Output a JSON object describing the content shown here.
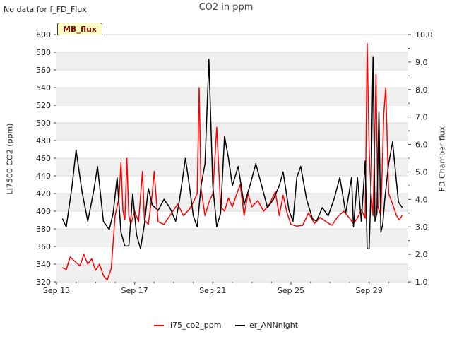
{
  "header": {
    "no_data_text": "No data for f_FD_Flux",
    "badge_text": "MB_flux"
  },
  "chart_data": {
    "type": "line",
    "title": "CO2 in ppm",
    "xlabel": "",
    "ylabel": "LI7500 CO2 (ppm)",
    "y2label": "FD Chamber flux",
    "x_tick_labels": [
      "Sep 13",
      "Sep 17",
      "Sep 21",
      "Sep 25",
      "Sep 29"
    ],
    "x_ticks_day": [
      13,
      17,
      21,
      25,
      29
    ],
    "xlim_day": [
      13,
      31
    ],
    "ylim": [
      320,
      600
    ],
    "y_ticks": [
      320,
      340,
      360,
      380,
      400,
      420,
      440,
      460,
      480,
      500,
      520,
      540,
      560,
      580,
      600
    ],
    "y2lim": [
      1.0,
      10.0
    ],
    "y2_ticks": [
      "1.0",
      "2.0",
      "3.0",
      "4.0",
      "5.0",
      "6.0",
      "7.0",
      "8.0",
      "9.0",
      "10.0"
    ],
    "grid": "horizontal bands",
    "legend_position": "bottom",
    "series": [
      {
        "name": "li75_co2_ppm",
        "color": "#ff0000",
        "axis": "left",
        "points": [
          [
            13.3,
            336
          ],
          [
            13.5,
            334
          ],
          [
            13.7,
            348
          ],
          [
            14.0,
            342
          ],
          [
            14.2,
            338
          ],
          [
            14.4,
            351
          ],
          [
            14.6,
            340
          ],
          [
            14.8,
            346
          ],
          [
            15.0,
            333
          ],
          [
            15.2,
            340
          ],
          [
            15.4,
            327
          ],
          [
            15.6,
            322
          ],
          [
            15.8,
            335
          ],
          [
            16.0,
            395
          ],
          [
            16.2,
            415
          ],
          [
            16.3,
            455
          ],
          [
            16.4,
            400
          ],
          [
            16.5,
            390
          ],
          [
            16.6,
            460
          ],
          [
            16.7,
            395
          ],
          [
            16.8,
            385
          ],
          [
            17.0,
            400
          ],
          [
            17.2,
            388
          ],
          [
            17.4,
            445
          ],
          [
            17.5,
            390
          ],
          [
            17.7,
            385
          ],
          [
            17.9,
            420
          ],
          [
            18.0,
            445
          ],
          [
            18.2,
            388
          ],
          [
            18.5,
            385
          ],
          [
            18.8,
            395
          ],
          [
            19.2,
            408
          ],
          [
            19.5,
            395
          ],
          [
            19.8,
            402
          ],
          [
            20.0,
            410
          ],
          [
            20.2,
            420
          ],
          [
            20.3,
            540
          ],
          [
            20.4,
            425
          ],
          [
            20.6,
            395
          ],
          [
            20.8,
            410
          ],
          [
            21.0,
            420
          ],
          [
            21.2,
            495
          ],
          [
            21.4,
            405
          ],
          [
            21.6,
            400
          ],
          [
            21.8,
            415
          ],
          [
            22.0,
            405
          ],
          [
            22.2,
            418
          ],
          [
            22.4,
            430
          ],
          [
            22.6,
            395
          ],
          [
            22.8,
            420
          ],
          [
            23.0,
            405
          ],
          [
            23.3,
            412
          ],
          [
            23.6,
            400
          ],
          [
            23.9,
            408
          ],
          [
            24.2,
            422
          ],
          [
            24.4,
            395
          ],
          [
            24.6,
            418
          ],
          [
            24.8,
            398
          ],
          [
            25.0,
            385
          ],
          [
            25.3,
            383
          ],
          [
            25.6,
            384
          ],
          [
            25.9,
            398
          ],
          [
            26.2,
            386
          ],
          [
            26.5,
            393
          ],
          [
            26.8,
            388
          ],
          [
            27.1,
            384
          ],
          [
            27.4,
            394
          ],
          [
            27.7,
            400
          ],
          [
            28.0,
            392
          ],
          [
            28.2,
            386
          ],
          [
            28.4,
            392
          ],
          [
            28.6,
            402
          ],
          [
            28.8,
            392
          ],
          [
            28.9,
            590
          ],
          [
            29.0,
            470
          ],
          [
            29.1,
            420
          ],
          [
            29.2,
            395
          ],
          [
            29.35,
            555
          ],
          [
            29.45,
            405
          ],
          [
            29.6,
            395
          ],
          [
            29.75,
            510
          ],
          [
            29.85,
            540
          ],
          [
            30.0,
            420
          ],
          [
            30.2,
            408
          ],
          [
            30.4,
            395
          ],
          [
            30.55,
            390
          ],
          [
            30.7,
            396
          ]
        ]
      },
      {
        "name": "er_ANNnight",
        "color": "#000000",
        "axis": "right",
        "points": [
          [
            13.3,
            3.3
          ],
          [
            13.5,
            3.0
          ],
          [
            13.8,
            4.5
          ],
          [
            14.0,
            5.8
          ],
          [
            14.3,
            4.3
          ],
          [
            14.6,
            3.2
          ],
          [
            14.9,
            4.3
          ],
          [
            15.1,
            5.2
          ],
          [
            15.4,
            3.2
          ],
          [
            15.7,
            2.9
          ],
          [
            15.9,
            3.5
          ],
          [
            16.1,
            4.8
          ],
          [
            16.3,
            2.8
          ],
          [
            16.5,
            2.3
          ],
          [
            16.7,
            2.3
          ],
          [
            16.9,
            4.2
          ],
          [
            17.1,
            2.7
          ],
          [
            17.3,
            2.2
          ],
          [
            17.5,
            3.1
          ],
          [
            17.7,
            4.4
          ],
          [
            17.9,
            3.8
          ],
          [
            18.2,
            3.6
          ],
          [
            18.5,
            4.0
          ],
          [
            18.8,
            3.7
          ],
          [
            19.1,
            3.2
          ],
          [
            19.3,
            4.0
          ],
          [
            19.6,
            5.5
          ],
          [
            19.8,
            4.5
          ],
          [
            20.0,
            3.4
          ],
          [
            20.2,
            3.0
          ],
          [
            20.4,
            4.5
          ],
          [
            20.6,
            5.3
          ],
          [
            20.8,
            9.1
          ],
          [
            21.0,
            4.5
          ],
          [
            21.2,
            3.0
          ],
          [
            21.4,
            3.5
          ],
          [
            21.6,
            6.3
          ],
          [
            21.8,
            5.5
          ],
          [
            22.0,
            4.5
          ],
          [
            22.3,
            5.2
          ],
          [
            22.6,
            3.8
          ],
          [
            22.9,
            4.5
          ],
          [
            23.2,
            5.3
          ],
          [
            23.5,
            4.5
          ],
          [
            23.8,
            3.7
          ],
          [
            24.1,
            4.0
          ],
          [
            24.4,
            4.5
          ],
          [
            24.6,
            5.0
          ],
          [
            24.9,
            3.6
          ],
          [
            25.1,
            3.2
          ],
          [
            25.3,
            4.8
          ],
          [
            25.5,
            5.2
          ],
          [
            25.8,
            4.0
          ],
          [
            26.1,
            3.3
          ],
          [
            26.3,
            3.2
          ],
          [
            26.6,
            3.7
          ],
          [
            26.9,
            3.4
          ],
          [
            27.2,
            4.0
          ],
          [
            27.5,
            4.8
          ],
          [
            27.8,
            3.5
          ],
          [
            28.1,
            4.8
          ],
          [
            28.2,
            3.0
          ],
          [
            28.4,
            4.8
          ],
          [
            28.6,
            3.2
          ],
          [
            28.8,
            5.4
          ],
          [
            28.9,
            2.2
          ],
          [
            29.0,
            2.2
          ],
          [
            29.1,
            4.5
          ],
          [
            29.2,
            9.2
          ],
          [
            29.3,
            3.2
          ],
          [
            29.4,
            3.5
          ],
          [
            29.5,
            7.2
          ],
          [
            29.6,
            2.8
          ],
          [
            29.7,
            3.1
          ],
          [
            29.8,
            4.0
          ],
          [
            30.0,
            5.3
          ],
          [
            30.2,
            6.1
          ],
          [
            30.35,
            5.0
          ],
          [
            30.5,
            3.9
          ],
          [
            30.7,
            3.7
          ]
        ]
      }
    ]
  }
}
